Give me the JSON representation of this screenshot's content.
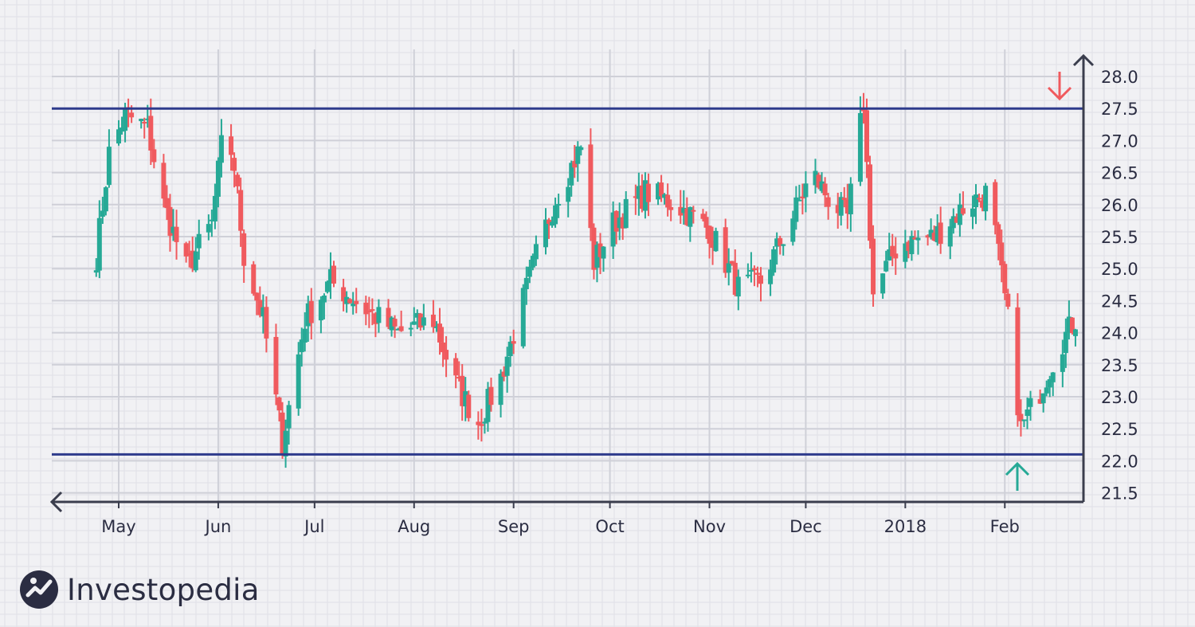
{
  "chart_data": {
    "type": "candlestick",
    "x_tick_labels": [
      "May",
      "Jun",
      "Jul",
      "Aug",
      "Sep",
      "Oct",
      "Nov",
      "Dec",
      "2018",
      "Feb"
    ],
    "y_tick_labels": [
      "21.5",
      "22.0",
      "22.5",
      "23.0",
      "23.5",
      "24.0",
      "24.5",
      "25.0",
      "25.5",
      "26.0",
      "26.5",
      "27.0",
      "27.5",
      "28.0"
    ],
    "ylim": [
      21.5,
      28.0
    ],
    "grid": true,
    "resistance": 27.5,
    "support": 22.1,
    "colors": {
      "up": "#26a996",
      "down": "#f05a5e",
      "level_line": "#2e3b8c",
      "axis": "#3a3d4d"
    },
    "annotations": {
      "resistance_marker": "red-down-arrow",
      "support_marker": "teal-up-arrow"
    },
    "keypoints": [
      {
        "date": "Apr 24",
        "price": 25.2
      },
      {
        "date": "Apr 28",
        "price": 26.8
      },
      {
        "date": "May 3",
        "price": 27.4
      },
      {
        "date": "May 10",
        "price": 27.2
      },
      {
        "date": "May 15",
        "price": 26.0
      },
      {
        "date": "May 22",
        "price": 25.0
      },
      {
        "date": "May 30",
        "price": 25.7
      },
      {
        "date": "Jun 3",
        "price": 27.3
      },
      {
        "date": "Jun 6",
        "price": 26.6
      },
      {
        "date": "Jun 9",
        "price": 25.2
      },
      {
        "date": "Jun 15",
        "price": 24.2
      },
      {
        "date": "Jun 21",
        "price": 22.3
      },
      {
        "date": "Jun 28",
        "price": 24.2
      },
      {
        "date": "Jul 6",
        "price": 24.8
      },
      {
        "date": "Jul 16",
        "price": 24.4
      },
      {
        "date": "Jul 27",
        "price": 24.0
      },
      {
        "date": "Aug 7",
        "price": 24.2
      },
      {
        "date": "Aug 14",
        "price": 23.2
      },
      {
        "date": "Aug 21",
        "price": 22.6
      },
      {
        "date": "Aug 28",
        "price": 23.3
      },
      {
        "date": "Sep 8",
        "price": 25.2
      },
      {
        "date": "Sep 14",
        "price": 26.1
      },
      {
        "date": "Sep 22",
        "price": 26.9
      },
      {
        "date": "Sep 26",
        "price": 25.1
      },
      {
        "date": "Oct 2",
        "price": 25.7
      },
      {
        "date": "Oct 12",
        "price": 26.2
      },
      {
        "date": "Oct 22",
        "price": 26.0
      },
      {
        "date": "Nov 1",
        "price": 25.6
      },
      {
        "date": "Nov 10",
        "price": 24.7
      },
      {
        "date": "Nov 17",
        "price": 24.8
      },
      {
        "date": "Nov 25",
        "price": 25.6
      },
      {
        "date": "Dec 3",
        "price": 26.5
      },
      {
        "date": "Dec 8",
        "price": 26.1
      },
      {
        "date": "Dec 14",
        "price": 25.8
      },
      {
        "date": "Dec 19",
        "price": 27.6
      },
      {
        "date": "Dec 22",
        "price": 24.6
      },
      {
        "date": "Dec 30",
        "price": 25.4
      },
      {
        "date": "Jan 10",
        "price": 25.5
      },
      {
        "date": "Jan 20",
        "price": 26.0
      },
      {
        "date": "Jan 27",
        "price": 26.2
      },
      {
        "date": "Feb 2",
        "price": 24.2
      },
      {
        "date": "Feb 6",
        "price": 22.5
      },
      {
        "date": "Feb 12",
        "price": 23.1
      },
      {
        "date": "Feb 18",
        "price": 23.8
      },
      {
        "date": "Feb 24",
        "price": 24.3
      }
    ]
  },
  "brand": {
    "name": "Investopedia"
  }
}
